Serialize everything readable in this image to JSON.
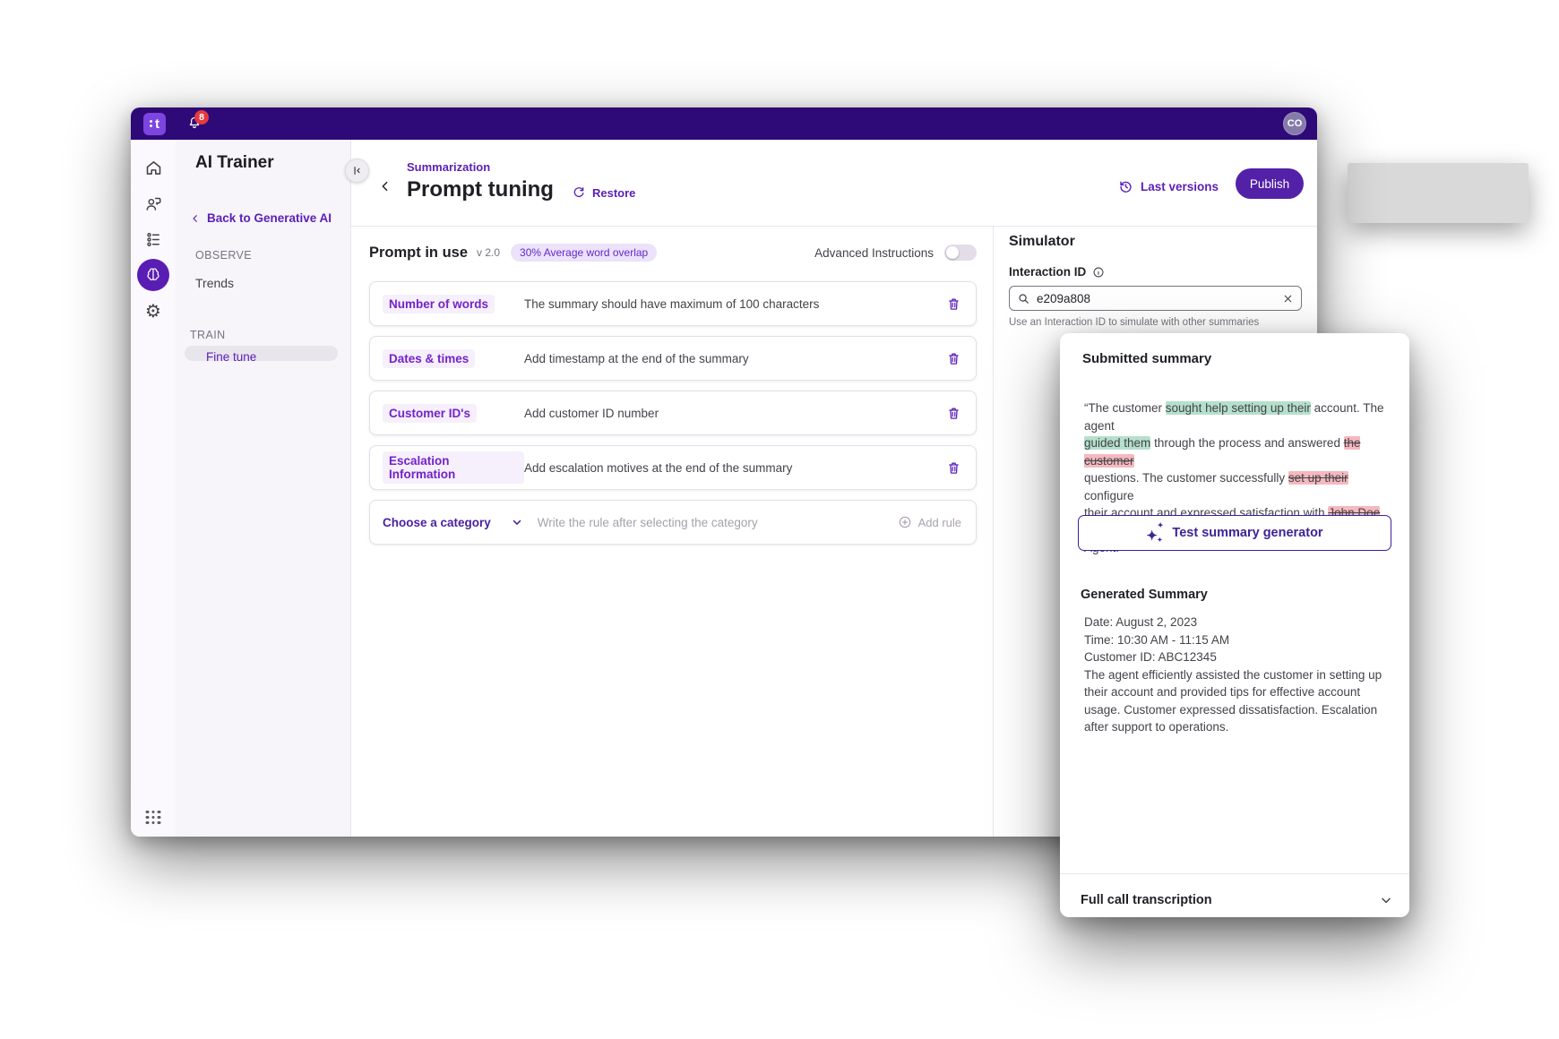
{
  "colors": {
    "topbar": "#2e0a78",
    "accent": "#5b21b6",
    "publish_button": "#5221a8",
    "notification_badge": "#e23b3f",
    "active_icon_circle": "#5a1db4",
    "highlight_added": "#b5e0cb",
    "highlight_removed": "#f4b9be",
    "rule_label": "#7323c8"
  },
  "topbar": {
    "logo_text": "t",
    "notification_count": "8",
    "avatar": "CO"
  },
  "sidebar": {
    "title": "AI Trainer",
    "back_label": "Back to Generative AI",
    "observe_label": "OBSERVE",
    "trends_label": "Trends",
    "train_label": "TRAIN",
    "fine_tune_label": "Fine tune"
  },
  "header": {
    "breadcrumb": "Summarization",
    "title": "Prompt tuning",
    "restore_label": "Restore",
    "last_versions_label": "Last versions",
    "publish_label": "Publish"
  },
  "prompt": {
    "title": "Prompt in use",
    "version": "v 2.0",
    "badge": "30% Average word overlap",
    "advanced_label": "Advanced Instructions",
    "advanced_enabled": false,
    "rules": [
      {
        "label": "Number of words",
        "description": "The summary should have maximum of 100 characters"
      },
      {
        "label": "Dates & times",
        "description": "Add timestamp at the end of the summary"
      },
      {
        "label": "Customer ID's",
        "description": "Add customer ID number"
      },
      {
        "label": "Escalation Information",
        "description": "Add escalation motives at the end of the summary"
      }
    ],
    "composer": {
      "category_label": "Choose a category",
      "placeholder": "Write the rule after selecting the category",
      "add_label": "Add rule"
    }
  },
  "simulator": {
    "title": "Simulator",
    "field_label": "Interaction ID",
    "value": "e209a808",
    "helper": "Use an Interaction ID to simulate with other summaries"
  },
  "summary_card": {
    "title": "Submitted summary",
    "segments": [
      {
        "text": "“The customer ",
        "mark": "none"
      },
      {
        "text": "sought help setting up their",
        "mark": "added"
      },
      {
        "text": " account. The agent\n",
        "mark": "none"
      },
      {
        "text": "guided them",
        "mark": "added"
      },
      {
        "text": " through the process and answered ",
        "mark": "none"
      },
      {
        "text": "the customer",
        "mark": "removed"
      },
      {
        "text": "\nquestions. The customer successfully ",
        "mark": "none"
      },
      {
        "text": "set up their",
        "mark": "removed"
      },
      {
        "text": " configure\ntheir account and expressed satisfaction with ",
        "mark": "none"
      },
      {
        "text": "John Doe",
        "mark": "removed"
      },
      {
        "text": " the\nAgent.”",
        "mark": "none"
      }
    ],
    "test_button_label": "Test summary generator",
    "generated_title": "Generated Summary",
    "generated_lines": [
      "Date: August 2, 2023",
      "Time: 10:30 AM - 11:15 AM",
      "Customer ID: ABC12345",
      "The agent efficiently assisted the customer in setting up their account and provided tips for effective account usage. Customer expressed dissatisfaction. Escalation after support to operations."
    ],
    "footer_label": "Full call transcription"
  }
}
